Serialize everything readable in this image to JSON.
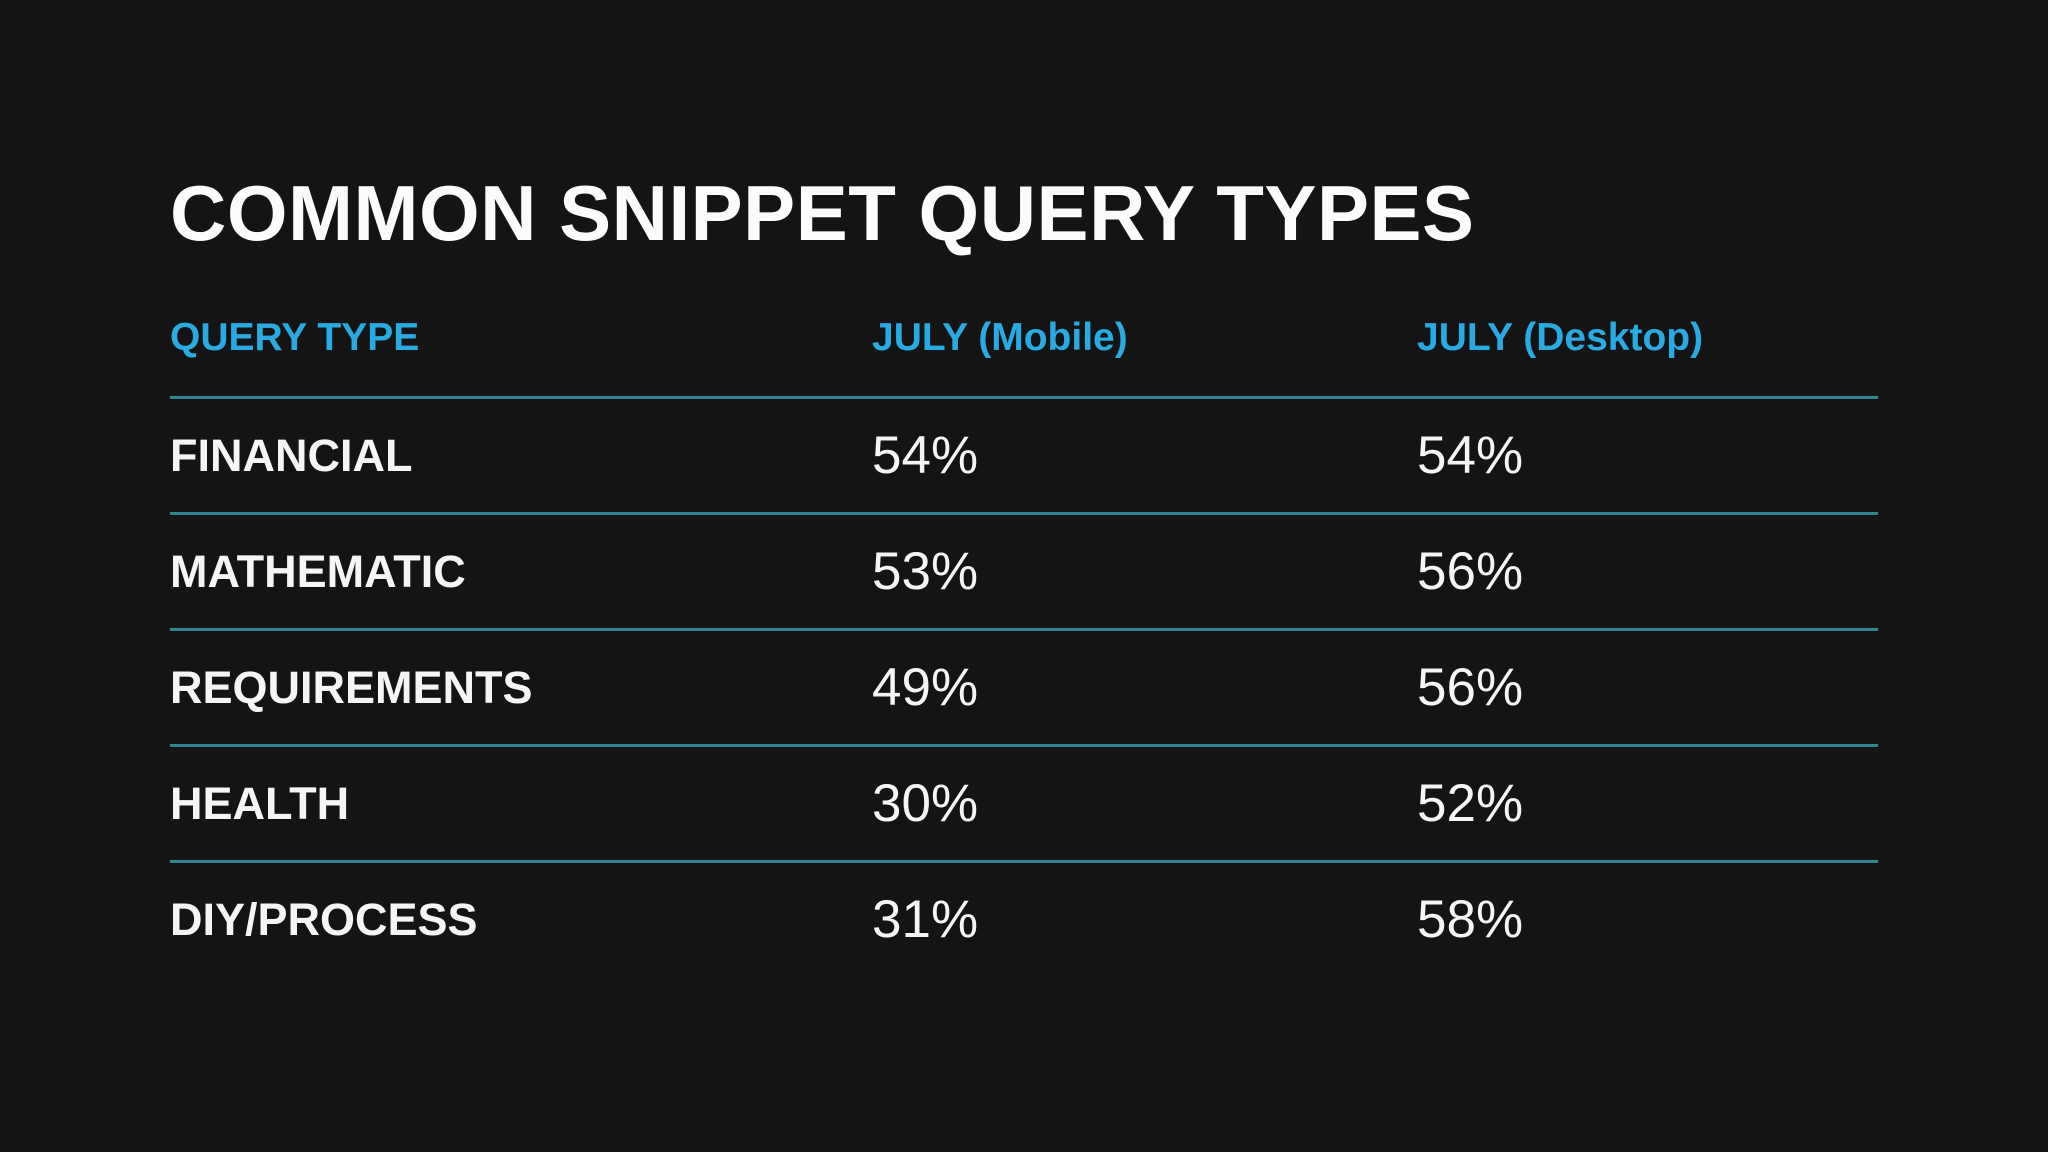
{
  "page": {
    "background": "#141414"
  },
  "colors": {
    "accent": "#29abe2",
    "divider": "#2d8392",
    "text": "#f5f5f5",
    "background": "#141414"
  },
  "title": "COMMON SNIPPET QUERY TYPES",
  "table": {
    "columns": [
      "QUERY TYPE",
      "JULY (Mobile)",
      "JULY (Desktop)"
    ],
    "rows": [
      {
        "query_type": "FINANCIAL",
        "july_mobile": "54%",
        "july_desktop": "54%"
      },
      {
        "query_type": "MATHEMATIC",
        "july_mobile": "53%",
        "july_desktop": "56%"
      },
      {
        "query_type": "REQUIREMENTS",
        "july_mobile": "49%",
        "july_desktop": "56%"
      },
      {
        "query_type": "HEALTH",
        "july_mobile": "30%",
        "july_desktop": "52%"
      },
      {
        "query_type": "DIY/PROCESS",
        "july_mobile": "31%",
        "july_desktop": "58%"
      }
    ]
  },
  "chart_data": {
    "type": "table",
    "title": "COMMON SNIPPET QUERY TYPES",
    "columns": [
      "QUERY TYPE",
      "JULY (Mobile)",
      "JULY (Desktop)"
    ],
    "categories": [
      "FINANCIAL",
      "MATHEMATIC",
      "REQUIREMENTS",
      "HEALTH",
      "DIY/PROCESS"
    ],
    "series": [
      {
        "name": "JULY (Mobile)",
        "unit": "%",
        "values": [
          54,
          53,
          49,
          30,
          31
        ]
      },
      {
        "name": "JULY (Desktop)",
        "unit": "%",
        "values": [
          54,
          56,
          56,
          52,
          58
        ]
      }
    ],
    "layout": {
      "legend": "none",
      "grid": "horizontal-dividers"
    }
  }
}
